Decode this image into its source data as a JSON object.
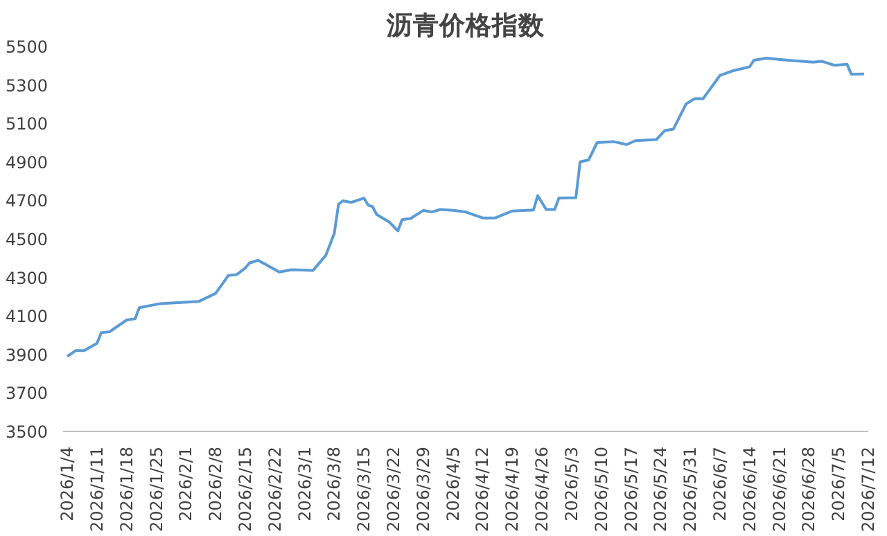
{
  "chart_data": {
    "type": "line",
    "title": "沥青价格指数",
    "x": [
      "2026-01-04",
      "2026-01-06",
      "2026-01-08",
      "2026-01-11",
      "2026-01-12",
      "2026-01-14",
      "2026-01-18",
      "2026-01-20",
      "2026-01-21",
      "2026-01-26",
      "2026-02-04",
      "2026-02-08",
      "2026-02-11",
      "2026-02-13",
      "2026-02-15",
      "2026-02-16",
      "2026-02-18",
      "2026-02-23",
      "2026-02-26",
      "2026-03-03",
      "2026-03-06",
      "2026-03-08",
      "2026-03-09",
      "2026-03-10",
      "2026-03-12",
      "2026-03-15",
      "2026-03-16",
      "2026-03-17",
      "2026-03-18",
      "2026-03-21",
      "2026-03-23",
      "2026-03-24",
      "2026-03-26",
      "2026-03-29",
      "2026-03-31",
      "2026-04-02",
      "2026-04-05",
      "2026-04-08",
      "2026-04-12",
      "2026-04-15",
      "2026-04-19",
      "2026-04-24",
      "2026-04-25",
      "2026-04-27",
      "2026-04-29",
      "2026-04-30",
      "2026-05-04",
      "2026-05-05",
      "2026-05-07",
      "2026-05-09",
      "2026-05-13",
      "2026-05-16",
      "2026-05-18",
      "2026-05-23",
      "2026-05-25",
      "2026-05-27",
      "2026-05-30",
      "2026-06-01",
      "2026-06-03",
      "2026-06-07",
      "2026-06-10",
      "2026-06-14",
      "2026-06-15",
      "2026-06-18",
      "2026-06-23",
      "2026-06-29",
      "2026-07-01",
      "2026-07-04",
      "2026-07-07",
      "2026-07-08",
      "2026-07-11"
    ],
    "series": [
      {
        "color": "#5b9bd5",
        "values": [
          3890,
          3920,
          3920,
          3958,
          4013,
          4018,
          4079,
          4085,
          4143,
          4164,
          4175,
          4217,
          4310,
          4315,
          4349,
          4375,
          4389,
          4328,
          4340,
          4336,
          4415,
          4529,
          4680,
          4698,
          4690,
          4712,
          4675,
          4668,
          4627,
          4587,
          4542,
          4600,
          4606,
          4648,
          4640,
          4653,
          4648,
          4640,
          4609,
          4609,
          4645,
          4650,
          4725,
          4653,
          4653,
          4712,
          4714,
          4900,
          4910,
          5000,
          5005,
          4990,
          5010,
          5016,
          5063,
          5070,
          5201,
          5228,
          5228,
          5349,
          5373,
          5394,
          5428,
          5439,
          5428,
          5418,
          5423,
          5402,
          5407,
          5355,
          5357
        ]
      }
    ],
    "xlim": [
      "2026-01-03",
      "2026-07-12"
    ],
    "xticks": [
      {
        "value": "2026-01-04",
        "label": "2026/1/4"
      },
      {
        "value": "2026-01-11",
        "label": "2026/1/11"
      },
      {
        "value": "2026-01-18",
        "label": "2026/1/18"
      },
      {
        "value": "2026-01-25",
        "label": "2026/1/25"
      },
      {
        "value": "2026-02-01",
        "label": "2026/2/1"
      },
      {
        "value": "2026-02-08",
        "label": "2026/2/8"
      },
      {
        "value": "2026-02-15",
        "label": "2026/2/15"
      },
      {
        "value": "2026-02-22",
        "label": "2026/2/22"
      },
      {
        "value": "2026-03-01",
        "label": "2026/3/1"
      },
      {
        "value": "2026-03-08",
        "label": "2026/3/8"
      },
      {
        "value": "2026-03-15",
        "label": "2026/3/15"
      },
      {
        "value": "2026-03-22",
        "label": "2026/3/22"
      },
      {
        "value": "2026-03-29",
        "label": "2026/3/29"
      },
      {
        "value": "2026-04-05",
        "label": "2026/4/5"
      },
      {
        "value": "2026-04-12",
        "label": "2026/4/12"
      },
      {
        "value": "2026-04-19",
        "label": "2026/4/19"
      },
      {
        "value": "2026-04-26",
        "label": "2026/4/26"
      },
      {
        "value": "2026-05-03",
        "label": "2026/5/3"
      },
      {
        "value": "2026-05-10",
        "label": "2026/5/10"
      },
      {
        "value": "2026-05-17",
        "label": "2026/5/17"
      },
      {
        "value": "2026-05-24",
        "label": "2026/5/24"
      },
      {
        "value": "2026-05-31",
        "label": "2026/5/31"
      },
      {
        "value": "2026-06-07",
        "label": "2026/6/7"
      },
      {
        "value": "2026-06-14",
        "label": "2026/6/14"
      },
      {
        "value": "2026-06-21",
        "label": "2026/6/21"
      },
      {
        "value": "2026-06-28",
        "label": "2026/6/28"
      },
      {
        "value": "2026-07-05",
        "label": "2026/7/5"
      },
      {
        "value": "2026-07-12",
        "label": "2026/7/12"
      }
    ],
    "ylim": [
      3500,
      5500
    ],
    "yticks": [
      3500,
      3700,
      3900,
      4100,
      4300,
      4500,
      4700,
      4900,
      5100,
      5300,
      5500
    ],
    "grid": false,
    "marker": "none",
    "line_style": "solid"
  }
}
